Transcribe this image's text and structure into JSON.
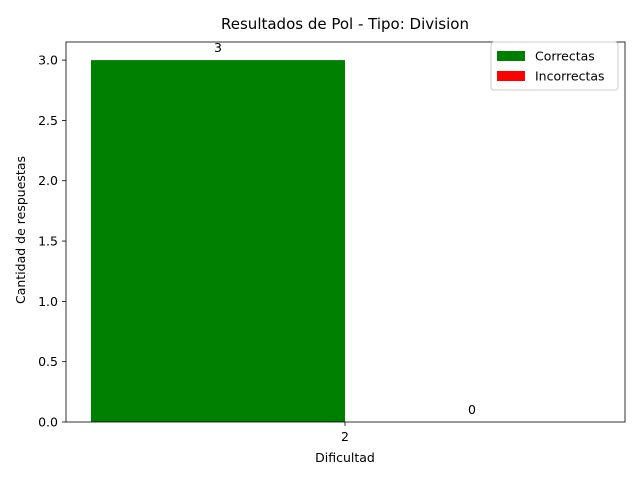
{
  "chart_data": {
    "type": "bar",
    "title": "Resultados de Pol - Tipo: Division",
    "xlabel": "Dificultad",
    "ylabel": "Cantidad de respuestas",
    "categories": [
      "2"
    ],
    "series": [
      {
        "name": "Correctas",
        "values": [
          3
        ],
        "color": "#008000"
      },
      {
        "name": "Incorrectas",
        "values": [
          0
        ],
        "color": "#ff0000"
      }
    ],
    "data_labels": [
      "3",
      "0"
    ],
    "ylim": [
      0,
      3.15
    ],
    "yticks": [
      "0.0",
      "0.5",
      "1.0",
      "1.5",
      "2.0",
      "2.5",
      "3.0"
    ],
    "ytick_values": [
      0,
      0.5,
      1.0,
      1.5,
      2.0,
      2.5,
      3.0
    ],
    "grid": false,
    "legend": "top-right"
  }
}
